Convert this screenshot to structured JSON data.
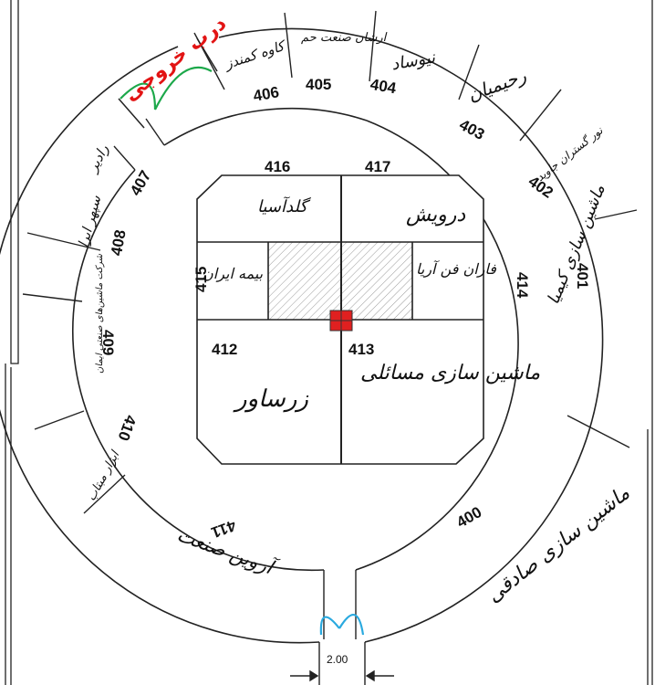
{
  "exit_label": "درب خروجی",
  "entrance_width": "2.00",
  "colors": {
    "exit_door": "#e21414",
    "door_arc": "#1ca84a",
    "entrance_door": "#29a9df",
    "center_marker": "#e02020"
  },
  "booths_outer": [
    {
      "number": "400",
      "name": "ماشین سازی صادقی"
    },
    {
      "number": "401",
      "name": "ماشین سازی کیمیا"
    },
    {
      "number": "402",
      "name": "نور گستران جاوید"
    },
    {
      "number": "403",
      "name": "رحیمیان"
    },
    {
      "number": "404",
      "name": "نیوساد"
    },
    {
      "number": "405",
      "name": "ارشان صنعت حم"
    },
    {
      "number": "406",
      "name": "کاوه کمندز"
    },
    {
      "number": "407",
      "name": "رادیر"
    },
    {
      "number": "408",
      "name": "سپهر ابرا"
    },
    {
      "number": "409",
      "name": "شرکت ماشین‌های صنعتی ایمان"
    },
    {
      "number": "410",
      "name": "ابزار مبتاب"
    },
    {
      "number": "411",
      "name": "آروین صنعت"
    }
  ],
  "booths_inner": [
    {
      "number": "416",
      "name": "گلدآسیا"
    },
    {
      "number": "417",
      "name": "درویش"
    },
    {
      "number": "415",
      "name": "بیمه ایران"
    },
    {
      "number": "414",
      "name": "فاران فن آریا"
    },
    {
      "number": "412",
      "name": "زرساور"
    },
    {
      "number": "413",
      "name": "ماشین سازی مسائلی"
    }
  ]
}
